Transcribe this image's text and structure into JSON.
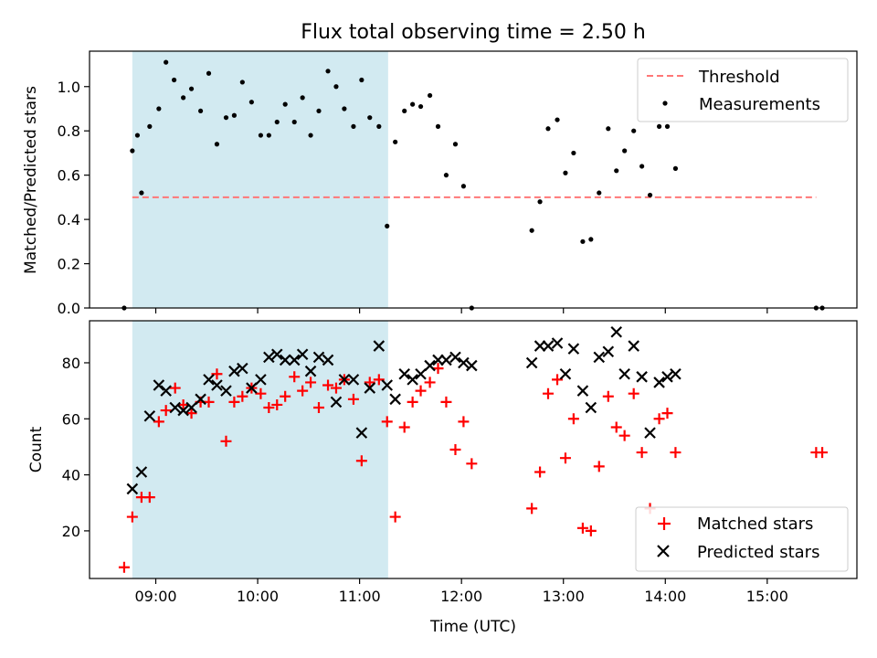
{
  "chart_data": [
    {
      "type": "scatter",
      "title": "Flux total observing time = 2.50 h",
      "xlabel": "",
      "ylabel": "Matched/Predicted stars",
      "xlim": [
        8.35,
        15.88
      ],
      "ylim": [
        0,
        1.16
      ],
      "yticks": [
        0.0,
        0.2,
        0.4,
        0.6,
        0.8,
        1.0
      ],
      "ytick_labels": [
        "0.0",
        "0.2",
        "0.4",
        "0.6",
        "0.8",
        "1.0"
      ],
      "xticks": [
        9,
        10,
        11,
        12,
        13,
        14,
        15
      ],
      "shaded_span": [
        8.77,
        11.28
      ],
      "shade_color": "#add8e6",
      "legend": {
        "location": "upper-right",
        "entries": [
          "Threshold",
          "Measurements"
        ]
      },
      "series": [
        {
          "name": "Threshold",
          "kind": "dashed-line",
          "color": "#ff7777",
          "x": [
            8.77,
            15.48
          ],
          "y": [
            0.5,
            0.5
          ]
        },
        {
          "name": "Measurements",
          "kind": "dots",
          "color": "#000000",
          "x": [
            8.69,
            8.77,
            8.82,
            8.86,
            8.94,
            9.03,
            9.1,
            9.18,
            9.27,
            9.35,
            9.44,
            9.52,
            9.6,
            9.69,
            9.77,
            9.85,
            9.94,
            10.03,
            10.11,
            10.19,
            10.27,
            10.36,
            10.44,
            10.52,
            10.6,
            10.69,
            10.77,
            10.85,
            10.94,
            11.02,
            11.1,
            11.19,
            11.27,
            11.35,
            11.44,
            11.52,
            11.6,
            11.69,
            11.77,
            11.85,
            11.94,
            12.02,
            12.1,
            12.69,
            12.77,
            12.85,
            12.94,
            13.02,
            13.1,
            13.19,
            13.27,
            13.35,
            13.44,
            13.52,
            13.6,
            13.69,
            13.77,
            13.85,
            13.94,
            14.02,
            14.1,
            15.48,
            15.54
          ],
          "y": [
            0.0,
            0.71,
            0.78,
            0.52,
            0.82,
            0.9,
            1.11,
            1.03,
            0.95,
            0.99,
            0.89,
            1.06,
            0.74,
            0.86,
            0.87,
            1.02,
            0.93,
            0.78,
            0.78,
            0.84,
            0.92,
            0.84,
            0.95,
            0.78,
            0.89,
            1.07,
            1.0,
            0.9,
            0.82,
            1.03,
            0.86,
            0.82,
            0.37,
            0.75,
            0.89,
            0.92,
            0.91,
            0.96,
            0.82,
            0.6,
            0.74,
            0.55,
            0.0,
            0.35,
            0.48,
            0.81,
            0.85,
            0.61,
            0.7,
            0.3,
            0.31,
            0.52,
            0.81,
            0.62,
            0.71,
            0.8,
            0.64,
            0.51,
            0.82,
            0.82,
            0.63,
            0.0,
            0.0
          ]
        }
      ]
    },
    {
      "type": "scatter",
      "title": "",
      "xlabel": "Time (UTC)",
      "ylabel": "Count",
      "xlim": [
        8.35,
        15.88
      ],
      "ylim": [
        3,
        95
      ],
      "yticks": [
        20,
        40,
        60,
        80
      ],
      "ytick_labels": [
        "20",
        "40",
        "60",
        "80"
      ],
      "xticks": [
        9,
        10,
        11,
        12,
        13,
        14,
        15
      ],
      "xtick_labels": [
        "09:00",
        "10:00",
        "11:00",
        "12:00",
        "13:00",
        "14:00",
        "15:00"
      ],
      "shaded_span": [
        8.77,
        11.28
      ],
      "shade_color": "#add8e6",
      "legend": {
        "location": "lower-right",
        "entries": [
          "Matched stars",
          "Predicted stars"
        ]
      },
      "series": [
        {
          "name": "Matched stars",
          "kind": "plus",
          "color": "#ff0000",
          "x": [
            8.69,
            8.77,
            8.86,
            8.94,
            9.03,
            9.1,
            9.19,
            9.27,
            9.35,
            9.44,
            9.52,
            9.6,
            9.69,
            9.77,
            9.85,
            9.94,
            10.03,
            10.11,
            10.19,
            10.27,
            10.36,
            10.44,
            10.52,
            10.6,
            10.69,
            10.77,
            10.85,
            10.94,
            11.02,
            11.1,
            11.19,
            11.27,
            11.35,
            11.44,
            11.52,
            11.6,
            11.69,
            11.77,
            11.85,
            11.94,
            12.02,
            12.1,
            12.69,
            12.77,
            12.85,
            12.94,
            13.02,
            13.1,
            13.19,
            13.27,
            13.35,
            13.44,
            13.52,
            13.6,
            13.69,
            13.77,
            13.85,
            13.94,
            14.02,
            14.1,
            15.48,
            15.54
          ],
          "y": [
            7,
            25,
            32,
            32,
            59,
            63,
            71,
            65,
            62,
            66,
            66,
            76,
            52,
            66,
            68,
            71,
            69,
            64,
            65,
            68,
            75,
            70,
            73,
            64,
            72,
            71,
            74,
            67,
            45,
            73,
            74,
            59,
            25,
            57,
            66,
            70,
            73,
            78,
            66,
            49,
            59,
            44,
            28,
            41,
            69,
            74,
            46,
            60,
            21,
            20,
            43,
            68,
            57,
            54,
            69,
            48,
            28,
            60,
            62,
            48,
            48,
            48
          ]
        },
        {
          "name": "Predicted stars",
          "kind": "cross",
          "color": "#000000",
          "x": [
            8.77,
            8.86,
            8.94,
            9.03,
            9.1,
            9.19,
            9.27,
            9.35,
            9.44,
            9.52,
            9.6,
            9.69,
            9.77,
            9.85,
            9.94,
            10.03,
            10.11,
            10.19,
            10.27,
            10.36,
            10.44,
            10.52,
            10.6,
            10.69,
            10.77,
            10.85,
            10.94,
            11.02,
            11.1,
            11.19,
            11.27,
            11.35,
            11.44,
            11.52,
            11.6,
            11.69,
            11.77,
            11.85,
            11.94,
            12.02,
            12.1,
            12.69,
            12.77,
            12.85,
            12.94,
            13.02,
            13.1,
            13.19,
            13.27,
            13.35,
            13.44,
            13.52,
            13.6,
            13.69,
            13.77,
            13.85,
            13.94,
            14.02,
            14.1
          ],
          "y": [
            35,
            41,
            61,
            72,
            70,
            64,
            63,
            64,
            67,
            74,
            72,
            70,
            77,
            78,
            71,
            74,
            82,
            83,
            81,
            81,
            83,
            77,
            82,
            81,
            66,
            74,
            74,
            55,
            71,
            86,
            72,
            67,
            76,
            74,
            76,
            79,
            81,
            81,
            82,
            80,
            79,
            80,
            86,
            86,
            87,
            76,
            85,
            70,
            64,
            82,
            84,
            91,
            76,
            86,
            75,
            55,
            73,
            75,
            76
          ]
        }
      ]
    }
  ]
}
